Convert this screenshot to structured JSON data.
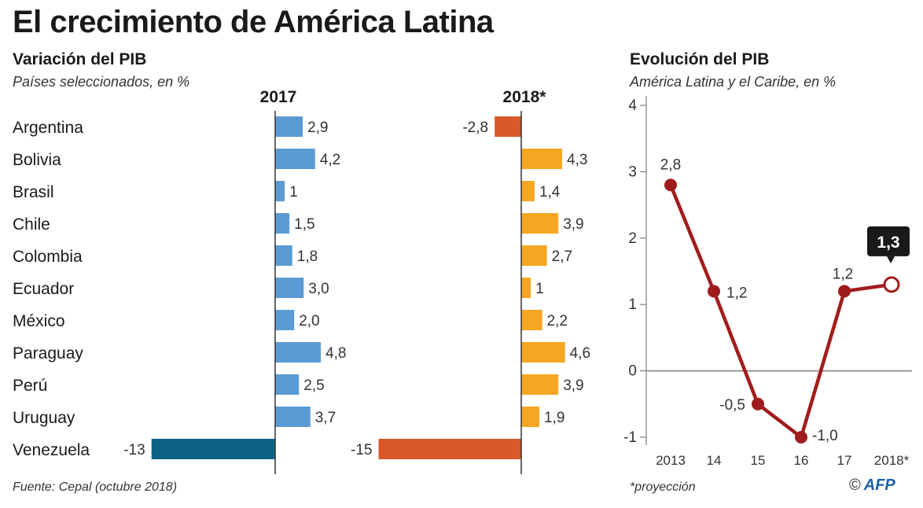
{
  "title": "El crecimiento de América Latina",
  "left_panel": {
    "heading": "Variación del PIB",
    "subheading": "Países seleccionados, en %",
    "source": "Fuente: Cepal (octubre 2018)"
  },
  "right_panel": {
    "heading": "Evolución del PIB",
    "subheading": "América Latina y el Caribe, en %",
    "footnote": "*proyección"
  },
  "credit": {
    "copyright": "©",
    "logo": "AFP"
  },
  "colors": {
    "bar_2017": "#5b9bd5",
    "bar_2017_negative": "#0d6286",
    "bar_2018": "#f5a623",
    "bar_2018_negative": "#d9592b",
    "line": "#a01c1c"
  },
  "chart_data": [
    {
      "type": "bar",
      "orientation": "horizontal",
      "categories": [
        "Argentina",
        "Bolivia",
        "Brasil",
        "Chile",
        "Colombia",
        "Ecuador",
        "México",
        "Paraguay",
        "Perú",
        "Uruguay",
        "Venezuela"
      ],
      "series": [
        {
          "name": "2017",
          "values": [
            2.9,
            4.2,
            1,
            1.5,
            1.8,
            3.0,
            2.0,
            4.8,
            2.5,
            3.7,
            -13
          ],
          "labels": [
            "2,9",
            "4,2",
            "1",
            "1,5",
            "1,8",
            "3,0",
            "2,0",
            "4,8",
            "2,5",
            "3,7",
            "-13"
          ]
        },
        {
          "name": "2018*",
          "values": [
            -2.8,
            4.3,
            1.4,
            3.9,
            2.7,
            1,
            2.2,
            4.6,
            3.9,
            1.9,
            -15
          ],
          "labels": [
            "-2,8",
            "4,3",
            "1,4",
            "3,9",
            "2,7",
            "1",
            "2,2",
            "4,6",
            "3,9",
            "1,9",
            "-15"
          ]
        }
      ]
    },
    {
      "type": "line",
      "x": [
        "2013",
        "14",
        "15",
        "16",
        "17",
        "2018*"
      ],
      "values": [
        2.8,
        1.2,
        -0.5,
        -1.0,
        1.2,
        1.3
      ],
      "labels": [
        "2,8",
        "1,2",
        "-0,5",
        "-1,0",
        "1,2",
        "1,3"
      ],
      "projected_index": 5,
      "ylim": [
        -1,
        4
      ],
      "yticks": [
        "-1",
        "0",
        "1",
        "2",
        "3",
        "4"
      ],
      "grid": false
    }
  ]
}
